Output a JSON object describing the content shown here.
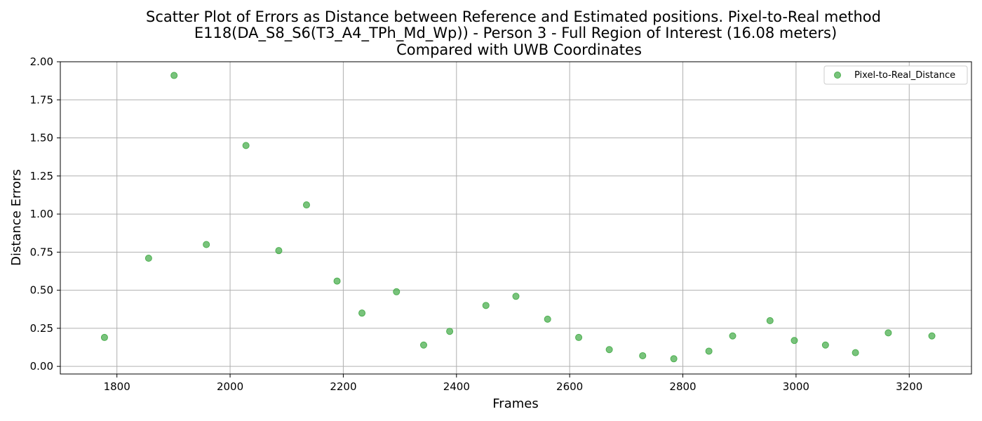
{
  "chart_data": {
    "type": "scatter",
    "title_lines": [
      "Scatter Plot of Errors as Distance between Reference and Estimated positions. Pixel-to-Real method",
      "E118(DA_S8_S6(T3_A4_TPh_Md_Wp)) - Person 3 - Full Region of Interest (16.08 meters)",
      "Compared with UWB Coordinates"
    ],
    "xlabel": "Frames",
    "ylabel": "Distance Errors",
    "xlim": [
      1700,
      3310
    ],
    "ylim": [
      -0.05,
      2.0
    ],
    "xticks": [
      1800,
      2000,
      2200,
      2400,
      2600,
      2800,
      3000,
      3200
    ],
    "yticks": [
      0.0,
      0.25,
      0.5,
      0.75,
      1.0,
      1.25,
      1.5,
      1.75,
      2.0
    ],
    "xtick_labels": [
      "1800",
      "2000",
      "2200",
      "2400",
      "2600",
      "2800",
      "3000",
      "3200"
    ],
    "ytick_labels": [
      "0.00",
      "0.25",
      "0.50",
      "0.75",
      "1.00",
      "1.25",
      "1.50",
      "1.75",
      "2.00"
    ],
    "grid": true,
    "legend_position": "top-right",
    "series": [
      {
        "name": "Pixel-to-Real_Distance",
        "color": "#4caf50",
        "points": [
          {
            "x": 1778,
            "y": 0.19
          },
          {
            "x": 1856,
            "y": 0.71
          },
          {
            "x": 1901,
            "y": 1.91
          },
          {
            "x": 1958,
            "y": 0.8
          },
          {
            "x": 2028,
            "y": 1.45
          },
          {
            "x": 2086,
            "y": 0.76
          },
          {
            "x": 2135,
            "y": 1.06
          },
          {
            "x": 2189,
            "y": 0.56
          },
          {
            "x": 2233,
            "y": 0.35
          },
          {
            "x": 2294,
            "y": 0.49
          },
          {
            "x": 2342,
            "y": 0.14
          },
          {
            "x": 2388,
            "y": 0.23
          },
          {
            "x": 2452,
            "y": 0.4
          },
          {
            "x": 2505,
            "y": 0.46
          },
          {
            "x": 2561,
            "y": 0.31
          },
          {
            "x": 2616,
            "y": 0.19
          },
          {
            "x": 2670,
            "y": 0.11
          },
          {
            "x": 2729,
            "y": 0.07
          },
          {
            "x": 2784,
            "y": 0.05
          },
          {
            "x": 2846,
            "y": 0.1
          },
          {
            "x": 2888,
            "y": 0.2
          },
          {
            "x": 2954,
            "y": 0.3
          },
          {
            "x": 2997,
            "y": 0.17
          },
          {
            "x": 3052,
            "y": 0.14
          },
          {
            "x": 3105,
            "y": 0.09
          },
          {
            "x": 3163,
            "y": 0.22
          },
          {
            "x": 3240,
            "y": 0.2
          }
        ]
      }
    ]
  }
}
